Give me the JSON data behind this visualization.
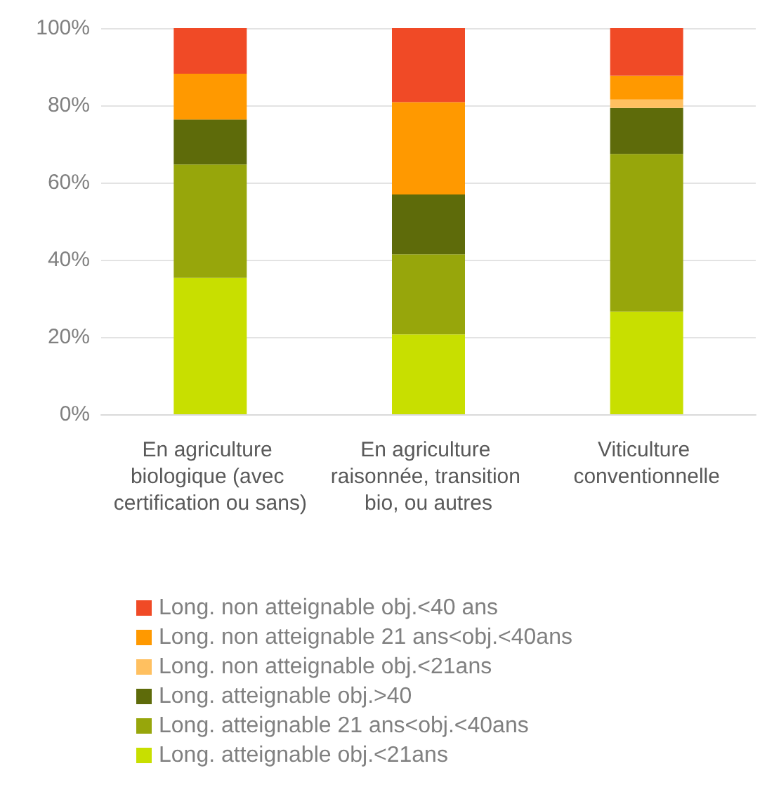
{
  "chart_data": {
    "type": "bar",
    "stacked": true,
    "categories": [
      "En agriculture biologique (avec certification ou sans)",
      "En agriculture raisonnée, transition bio, ou autres",
      "Viticulture conventionnelle"
    ],
    "series": [
      {
        "name": "Long. atteignable obj.<21ans",
        "color": "#c8df00",
        "values": [
          35.3,
          20.7,
          26.6
        ]
      },
      {
        "name": "Long. atteignable 21 ans<obj.<40ans",
        "color": "#97a60b",
        "values": [
          29.4,
          20.7,
          40.8
        ]
      },
      {
        "name": "Long. atteignable obj.>40",
        "color": "#5e6b0a",
        "values": [
          11.6,
          15.5,
          11.9
        ]
      },
      {
        "name": "Long. non atteignable obj.<21ans",
        "color": "#ffc060",
        "values": [
          0,
          0,
          2.2
        ]
      },
      {
        "name": "Long. non atteignable 21 ans<obj.<40ans",
        "color": "#ff9900",
        "values": [
          11.9,
          23.9,
          6.2
        ]
      },
      {
        "name": "Long. non atteignable obj.<40 ans",
        "color": "#f04a26",
        "values": [
          11.8,
          19.2,
          12.3
        ]
      }
    ],
    "ylim": [
      0,
      100
    ],
    "yticks": [
      {
        "value": 0,
        "label": "0%"
      },
      {
        "value": 20,
        "label": "20%"
      },
      {
        "value": 40,
        "label": "40%"
      },
      {
        "value": 60,
        "label": "60%"
      },
      {
        "value": 80,
        "label": "80%"
      },
      {
        "value": 100,
        "label": "100%"
      }
    ],
    "grid": "y",
    "legend": "bottom"
  }
}
